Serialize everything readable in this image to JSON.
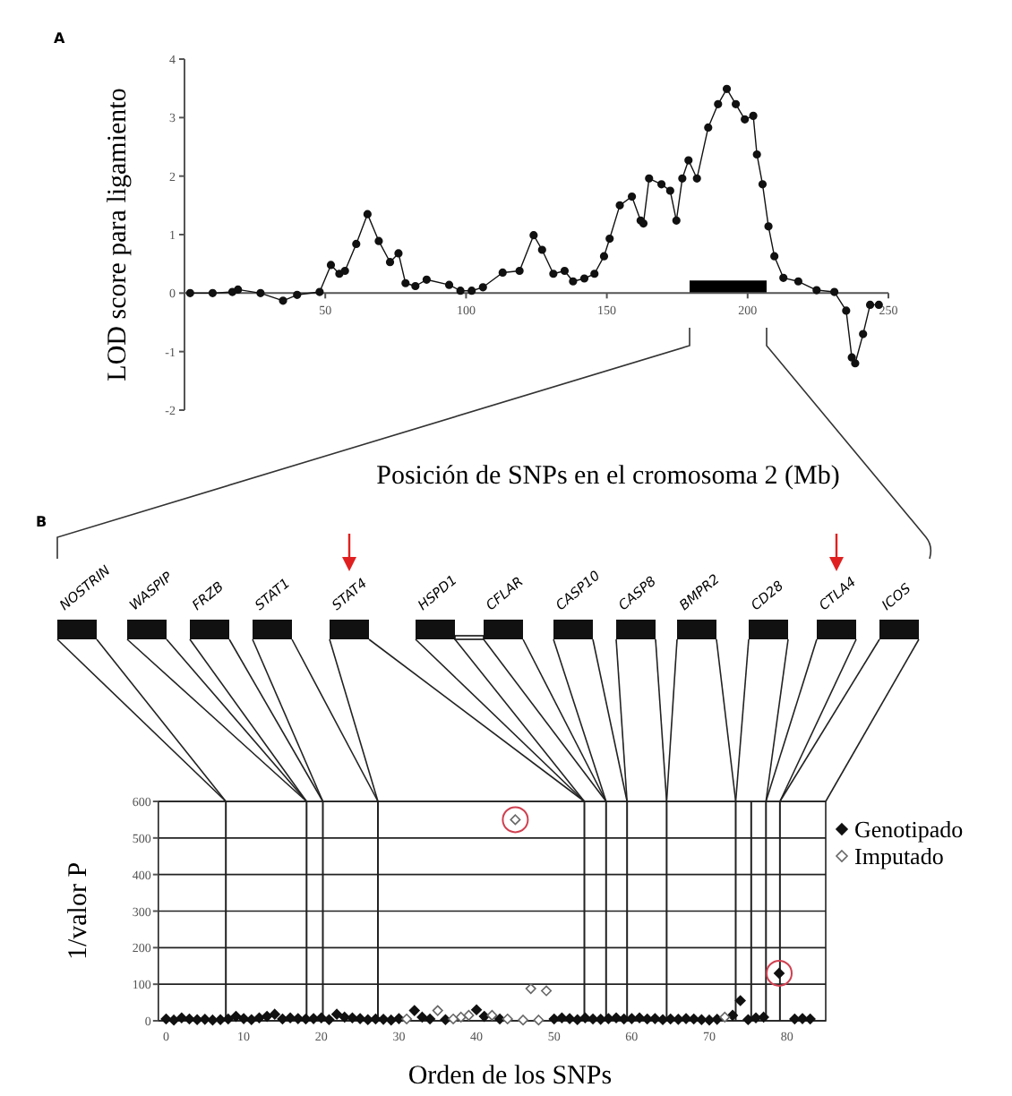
{
  "chart_data": [
    {
      "type": "line",
      "annotations": [
        "A"
      ],
      "xlabel": "Posición de SNPs en el cromosoma 2 (Mb)",
      "ylabel": "LOD score para ligamiento",
      "xlim": [
        0,
        250
      ],
      "xticks": [
        50,
        100,
        150,
        200,
        250
      ],
      "ylim": [
        -2,
        4
      ],
      "yticks": [
        -2,
        -1,
        0,
        1,
        2,
        3,
        4
      ],
      "marker": "circle",
      "grid": false,
      "series": [
        {
          "color": "#111111",
          "x": [
            2,
            10,
            17,
            19,
            27,
            35,
            40,
            48,
            52,
            55,
            57,
            61,
            65,
            69,
            73,
            76,
            78.5,
            82,
            86,
            94,
            98,
            102,
            106,
            113,
            119,
            124,
            127,
            131,
            135,
            138,
            142,
            145.6,
            149,
            151,
            154.6,
            158.9,
            162,
            163,
            165,
            169.4,
            172.5,
            174.7,
            176.8,
            179,
            182,
            186,
            189.5,
            192.6,
            195.8,
            199,
            202,
            203.3,
            205.3,
            207.4,
            209.5,
            212.7,
            218,
            224.5,
            230.8,
            235,
            237,
            238.2,
            241,
            243.5,
            246.6
          ],
          "values": [
            0,
            0,
            0.02,
            0.06,
            0,
            -0.13,
            -0.03,
            0.02,
            0.48,
            0.33,
            0.38,
            0.84,
            1.35,
            0.89,
            0.53,
            0.68,
            0.17,
            0.12,
            0.23,
            0.14,
            0.04,
            0.04,
            0.1,
            0.35,
            0.38,
            0.99,
            0.74,
            0.33,
            0.38,
            0.2,
            0.25,
            0.33,
            0.63,
            0.93,
            1.5,
            1.65,
            1.24,
            1.19,
            1.96,
            1.86,
            1.75,
            1.24,
            1.96,
            2.27,
            1.96,
            2.83,
            3.23,
            3.49,
            3.23,
            2.97,
            3.03,
            2.37,
            1.86,
            1.14,
            0.63,
            0.26,
            0.2,
            0.05,
            0.02,
            -0.3,
            -1.1,
            -1.2,
            -0.7,
            -0.2,
            -0.2
          ]
        }
      ]
    },
    {
      "type": "scatter",
      "xlabel": "Orden de los SNPs",
      "ylabel": "1/valor P",
      "xlim": [
        -1,
        85
      ],
      "xticks": [
        0,
        10,
        20,
        30,
        40,
        50,
        60,
        70,
        80
      ],
      "ylim": [
        0,
        600
      ],
      "yticks": [
        0,
        100,
        200,
        300,
        400,
        500,
        600
      ],
      "grid": "y",
      "legend": "top right",
      "marker": "diamond",
      "annotations": [
        "B",
        "NOSTRIN",
        "WASPIP",
        "FRZB",
        "STAT1",
        "STAT4",
        "HSPD1",
        "CFLAR",
        "CASP10",
        "CASP8",
        "BMPR2",
        "CD28",
        "CTLA4",
        "ICOS"
      ],
      "ref_lines": [
        {
          "axis": "x",
          "value": 7.7
        },
        {
          "axis": "x",
          "value": 18.1
        },
        {
          "axis": "x",
          "value": 20.2
        },
        {
          "axis": "x",
          "value": 27.3
        },
        {
          "axis": "x",
          "value": 53.9
        },
        {
          "axis": "x",
          "value": 56.7
        },
        {
          "axis": "x",
          "value": 59.4
        },
        {
          "axis": "x",
          "value": 64.5
        },
        {
          "axis": "x",
          "value": 73.4
        },
        {
          "axis": "x",
          "value": 75.4
        },
        {
          "axis": "x",
          "value": 77.3
        },
        {
          "axis": "x",
          "value": 79.1
        }
      ],
      "series": [
        {
          "name": "Genotipado",
          "color": "#111111",
          "x": [
            0,
            1,
            2,
            3,
            4,
            5,
            6,
            7,
            8,
            9,
            10,
            11,
            12,
            13,
            14,
            15,
            16,
            17,
            18,
            19,
            20,
            21,
            22,
            23,
            24,
            25,
            26,
            27,
            28,
            29,
            30,
            32,
            33,
            34,
            36,
            40,
            41,
            43,
            50,
            51,
            52,
            53,
            54,
            55,
            56,
            57,
            58,
            59,
            60,
            61,
            62,
            63,
            64,
            65,
            66,
            67,
            68,
            69,
            70,
            71,
            73,
            74,
            75,
            76,
            77,
            79,
            81,
            82,
            83
          ],
          "values": [
            5,
            2,
            8,
            5,
            3,
            4,
            2,
            3,
            5,
            12,
            6,
            3,
            8,
            12,
            18,
            5,
            8,
            6,
            5,
            6,
            8,
            3,
            18,
            10,
            8,
            6,
            3,
            5,
            4,
            2,
            6,
            28,
            10,
            5,
            3,
            30,
            12,
            5,
            5,
            8,
            6,
            3,
            8,
            5,
            4,
            6,
            8,
            5,
            6,
            8,
            5,
            6,
            3,
            5,
            4,
            6,
            5,
            3,
            2,
            4,
            15,
            55,
            3,
            8,
            10,
            130,
            5,
            6,
            5
          ]
        },
        {
          "name": "Imputado",
          "color": "#666666",
          "x": [
            31,
            35,
            37,
            38,
            39,
            42,
            44,
            45,
            46,
            47,
            48,
            49,
            72
          ],
          "values": [
            5,
            28,
            5,
            10,
            15,
            15,
            5,
            550,
            2,
            88,
            2,
            82,
            10
          ]
        }
      ]
    }
  ]
}
